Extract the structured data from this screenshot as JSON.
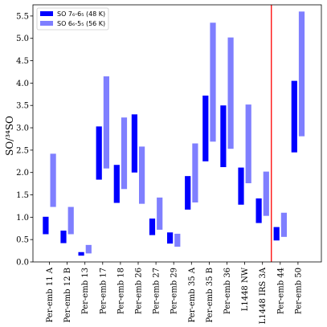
{
  "chart_data": {
    "type": "bar",
    "subtype": "floating-range",
    "categories": [
      "Per-emb 11 A",
      "Per-emb 12 B",
      "Per-emb 13",
      "Per-emb 17",
      "Per-emb 18",
      "Per-emb 26",
      "Per-emb 27",
      "Per-emb 29",
      "Per-emb 35 A",
      "Per-emb 35 B",
      "Per-emb 36",
      "L1448 NW",
      "L1448 IRS 3A",
      "Per-emb 44",
      "Per-emb 50"
    ],
    "series": [
      {
        "name": "SO 7₆-6₅ (48 K)",
        "color": "#0000ff",
        "ranges": [
          [
            0.62,
            1.01
          ],
          [
            0.42,
            0.7
          ],
          [
            0.14,
            0.22
          ],
          [
            1.84,
            3.03
          ],
          [
            1.32,
            2.17
          ],
          [
            2.0,
            3.3
          ],
          [
            0.6,
            0.97
          ],
          [
            0.41,
            0.66
          ],
          [
            1.17,
            1.92
          ],
          [
            2.25,
            3.72
          ],
          [
            2.12,
            3.5
          ],
          [
            1.28,
            2.11
          ],
          [
            0.87,
            1.42
          ],
          [
            0.48,
            0.78
          ],
          [
            2.45,
            4.05
          ]
        ]
      },
      {
        "name": "SO 6₆-5₅ (56 K)",
        "color": "#7f7fff",
        "ranges": [
          [
            1.23,
            2.42
          ],
          [
            0.62,
            1.23
          ],
          [
            0.19,
            0.38
          ],
          [
            2.09,
            4.15
          ],
          [
            1.63,
            3.23
          ],
          [
            1.3,
            2.58
          ],
          [
            0.72,
            1.44
          ],
          [
            0.34,
            0.63
          ],
          [
            1.33,
            2.65
          ],
          [
            2.69,
            5.35
          ],
          [
            2.53,
            5.02
          ],
          [
            1.76,
            3.52
          ],
          [
            1.03,
            2.02
          ],
          [
            0.56,
            1.1
          ],
          [
            2.81,
            5.6
          ]
        ]
      }
    ],
    "ylabel": "SO/³⁴SO",
    "ylim": [
      0,
      5.75
    ],
    "yticks": [
      "0.0",
      "0.5",
      "1.0",
      "1.5",
      "2.0",
      "2.5",
      "3.0",
      "3.5",
      "4.0",
      "4.5",
      "5.0",
      "5.5"
    ],
    "separator": {
      "after_category": "L1448 IRS 3A",
      "color": "#ff0000"
    },
    "legend": {
      "position": "top-left"
    },
    "grid": false
  }
}
